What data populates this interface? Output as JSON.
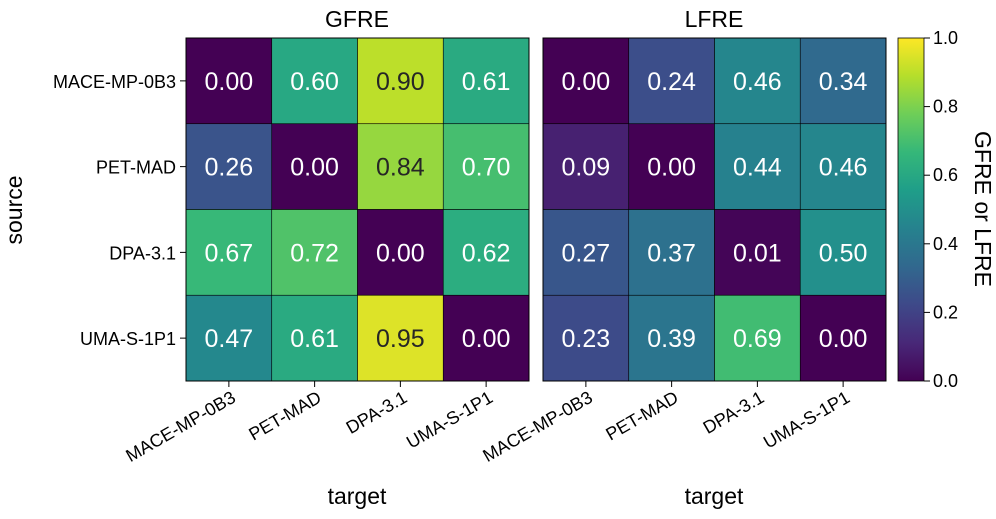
{
  "chart_data": [
    {
      "type": "heatmap",
      "title": "GFRE",
      "xlabel": "target",
      "ylabel": "source",
      "rows": [
        "MACE-MP-0B3",
        "PET-MAD",
        "DPA-3.1",
        "UMA-S-1P1"
      ],
      "cols": [
        "MACE-MP-0B3",
        "PET-MAD",
        "DPA-3.1",
        "UMA-S-1P1"
      ],
      "values": [
        [
          0.0,
          0.6,
          0.9,
          0.61
        ],
        [
          0.26,
          0.0,
          0.84,
          0.7
        ],
        [
          0.67,
          0.72,
          0.0,
          0.62
        ],
        [
          0.47,
          0.61,
          0.95,
          0.0
        ]
      ],
      "labels": [
        [
          "0.00",
          "0.60",
          "0.90",
          "0.61"
        ],
        [
          "0.26",
          "0.00",
          "0.84",
          "0.70"
        ],
        [
          "0.67",
          "0.72",
          "0.00",
          "0.62"
        ],
        [
          "0.47",
          "0.61",
          "0.95",
          "0.00"
        ]
      ]
    },
    {
      "type": "heatmap",
      "title": "LFRE",
      "xlabel": "target",
      "ylabel": "",
      "rows": [
        "MACE-MP-0B3",
        "PET-MAD",
        "DPA-3.1",
        "UMA-S-1P1"
      ],
      "cols": [
        "MACE-MP-0B3",
        "PET-MAD",
        "DPA-3.1",
        "UMA-S-1P1"
      ],
      "values": [
        [
          0.0,
          0.24,
          0.46,
          0.34
        ],
        [
          0.09,
          0.0,
          0.44,
          0.46
        ],
        [
          0.27,
          0.37,
          0.01,
          0.5
        ],
        [
          0.23,
          0.39,
          0.69,
          0.0
        ]
      ],
      "labels": [
        [
          "0.00",
          "0.24",
          "0.46",
          "0.34"
        ],
        [
          "0.09",
          "0.00",
          "0.44",
          "0.46"
        ],
        [
          "0.27",
          "0.37",
          "0.01",
          "0.50"
        ],
        [
          "0.23",
          "0.39",
          "0.69",
          "0.00"
        ]
      ]
    }
  ],
  "colorbar": {
    "label": "GFRE or LFRE",
    "range": [
      0.0,
      1.0
    ],
    "ticks": [
      0.0,
      0.2,
      0.4,
      0.6,
      0.8,
      1.0
    ],
    "tick_labels": [
      "0.0",
      "0.2",
      "0.4",
      "0.6",
      "0.8",
      "1.0"
    ],
    "colormap": "viridis",
    "colormap_stops": [
      "#440154",
      "#482878",
      "#3e4989",
      "#31688e",
      "#26828e",
      "#1f9e89",
      "#35b779",
      "#6ece58",
      "#b5de2b",
      "#fde725"
    ]
  }
}
